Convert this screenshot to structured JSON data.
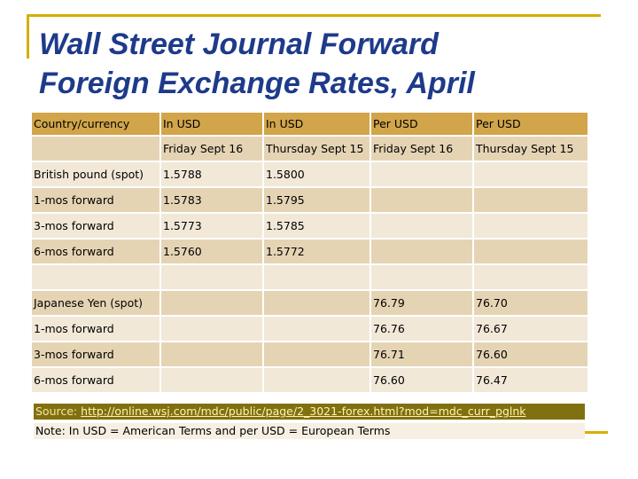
{
  "slide": {
    "title_line1": "Wall Street Journal Forward",
    "title_line2": "Foreign Exchange Rates, April"
  },
  "table": {
    "header_row1": [
      "Country/currency",
      "In USD",
      "In USD",
      "Per USD",
      "Per USD"
    ],
    "header_row2": [
      "",
      "Friday  Sept 16",
      "Thursday Sept 15",
      "Friday Sept 16",
      "Thursday Sept 15"
    ],
    "rows": [
      [
        "British pound (spot)",
        "1.5788",
        "1.5800",
        "",
        ""
      ],
      [
        "1-mos forward",
        "1.5783",
        "1.5795",
        "",
        ""
      ],
      [
        "3-mos forward",
        "1.5773",
        "1.5785",
        "",
        ""
      ],
      [
        "6-mos forward",
        "1.5760",
        "1.5772",
        "",
        ""
      ],
      [
        "",
        "",
        "",
        "",
        ""
      ],
      [
        "Japanese Yen (spot)",
        "",
        "",
        "76.79",
        "76.70"
      ],
      [
        "1-mos forward",
        "",
        "",
        "76.76",
        "76.67"
      ],
      [
        "3-mos forward",
        "",
        "",
        "76.71",
        "76.60"
      ],
      [
        "6-mos forward",
        "",
        "",
        "76.60",
        "76.47"
      ]
    ]
  },
  "source": {
    "label": "Source:",
    "url": "http://online.wsj.com/mdc/public/page/2_3021-forex.html?mod=mdc_curr_pglnk"
  },
  "note": {
    "text": "Note: In USD = American Terms and  per USD = European Terms"
  }
}
